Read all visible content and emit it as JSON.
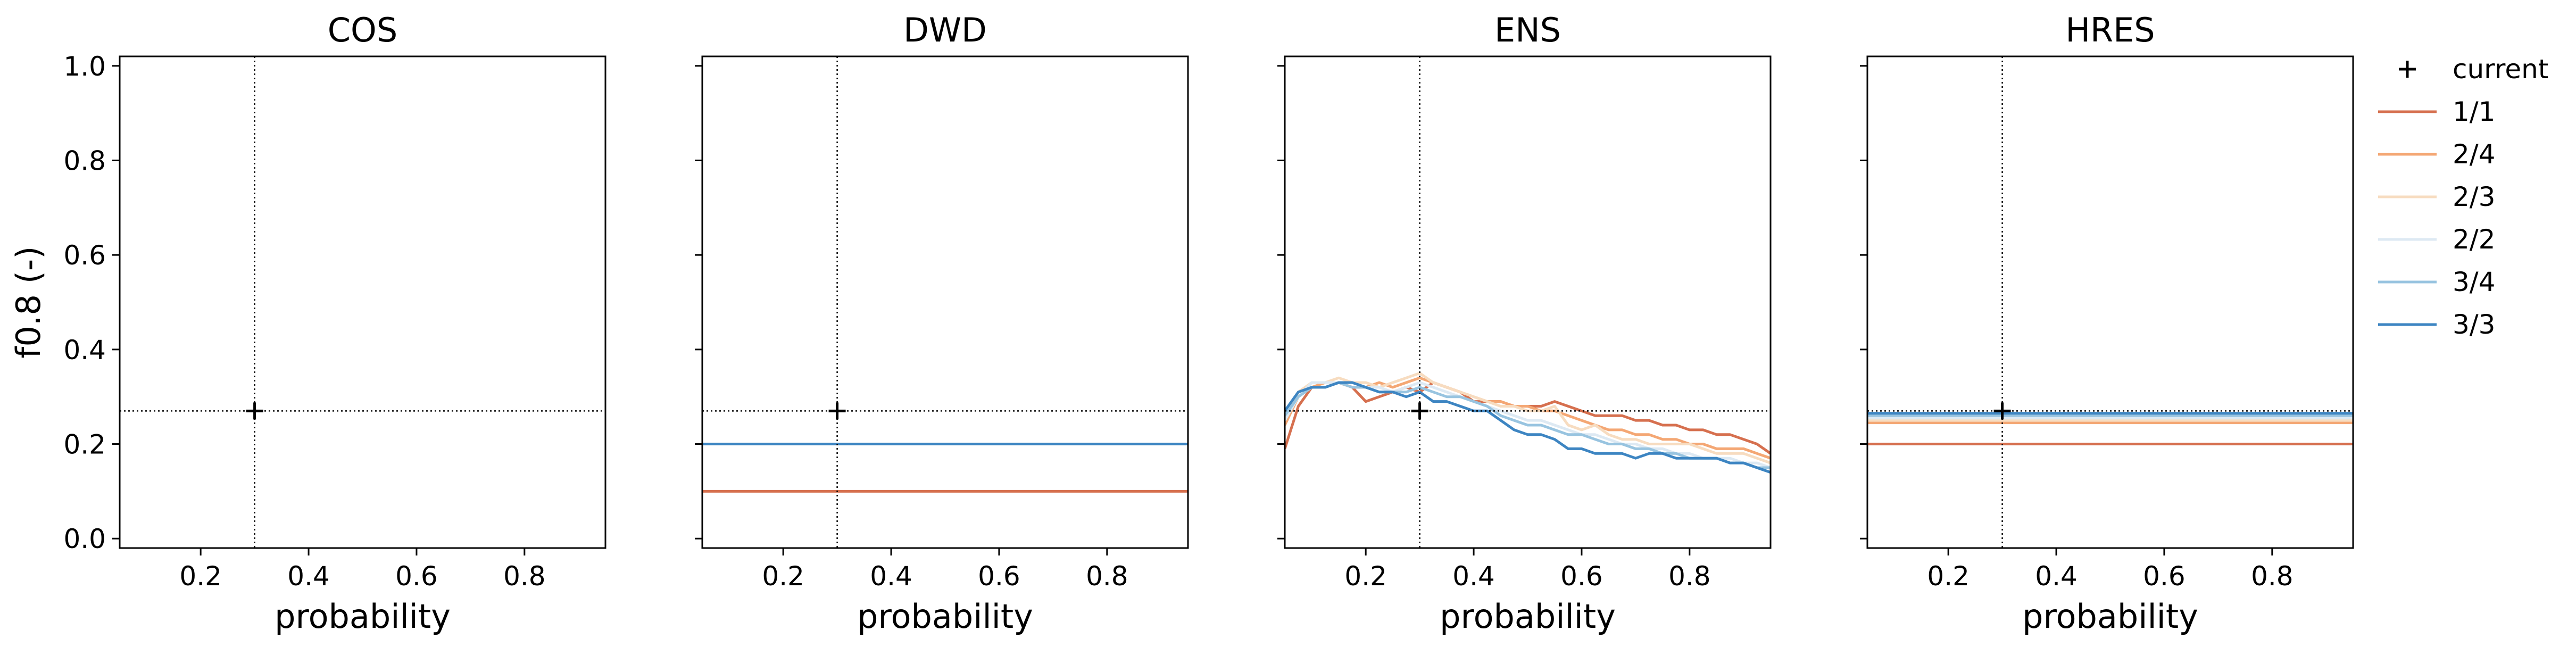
{
  "chart_data": {
    "type": "line",
    "ylabel": "f0.8 (-)",
    "xlabel": "probability",
    "xlim": [
      0.05,
      0.95
    ],
    "ylim": [
      -0.02,
      1.02
    ],
    "xticks": [
      0.2,
      0.4,
      0.6,
      0.8
    ],
    "xtick_labels": [
      "0.2",
      "0.4",
      "0.6",
      "0.8"
    ],
    "yticks": [
      0.0,
      0.2,
      0.4,
      0.6,
      0.8,
      1.0
    ],
    "ytick_labels": [
      "0.0",
      "0.2",
      "0.4",
      "0.6",
      "0.8",
      "1.0"
    ],
    "grid": false,
    "legend_position": "outside-right",
    "reference": {
      "label": "current",
      "x": 0.3,
      "y": 0.27
    },
    "series_colors": {
      "1/1": "#d6704f",
      "2/4": "#f4a774",
      "2/3": "#f7dcc0",
      "2/2": "#dde9f3",
      "3/4": "#98c4e0",
      "3/3": "#3d85c2"
    },
    "legend": [
      "current",
      "1/1",
      "2/4",
      "2/3",
      "2/2",
      "3/4",
      "3/3"
    ],
    "panels": [
      {
        "title": "COS",
        "series": []
      },
      {
        "title": "DWD",
        "series": [
          {
            "name": "1/1",
            "x": [
              0.05,
              0.95
            ],
            "y": [
              0.1,
              0.1
            ]
          },
          {
            "name": "2/4",
            "x": [
              0.05,
              0.95
            ],
            "y": [
              0.2,
              0.2
            ]
          },
          {
            "name": "3/3",
            "x": [
              0.05,
              0.95
            ],
            "y": [
              0.2,
              0.2
            ]
          }
        ]
      },
      {
        "title": "ENS",
        "series": [
          {
            "name": "1/1",
            "x": [
              0.05,
              0.075,
              0.1,
              0.125,
              0.15,
              0.175,
              0.2,
              0.225,
              0.25,
              0.275,
              0.3,
              0.325,
              0.35,
              0.375,
              0.4,
              0.425,
              0.45,
              0.475,
              0.5,
              0.525,
              0.55,
              0.575,
              0.6,
              0.625,
              0.65,
              0.675,
              0.7,
              0.725,
              0.75,
              0.775,
              0.8,
              0.825,
              0.85,
              0.875,
              0.9,
              0.925,
              0.95
            ],
            "y": [
              0.19,
              0.28,
              0.32,
              0.32,
              0.33,
              0.32,
              0.29,
              0.3,
              0.31,
              0.32,
              0.31,
              0.33,
              0.32,
              0.31,
              0.29,
              0.29,
              0.29,
              0.28,
              0.28,
              0.28,
              0.29,
              0.28,
              0.27,
              0.26,
              0.26,
              0.26,
              0.25,
              0.25,
              0.24,
              0.24,
              0.23,
              0.23,
              0.22,
              0.22,
              0.21,
              0.2,
              0.18
            ]
          },
          {
            "name": "2/4",
            "x": [
              0.05,
              0.075,
              0.1,
              0.125,
              0.15,
              0.175,
              0.2,
              0.225,
              0.25,
              0.275,
              0.3,
              0.325,
              0.35,
              0.375,
              0.4,
              0.425,
              0.45,
              0.475,
              0.5,
              0.525,
              0.55,
              0.575,
              0.6,
              0.625,
              0.65,
              0.675,
              0.7,
              0.725,
              0.75,
              0.775,
              0.8,
              0.825,
              0.85,
              0.875,
              0.9,
              0.925,
              0.95
            ],
            "y": [
              0.24,
              0.3,
              0.32,
              0.33,
              0.33,
              0.32,
              0.32,
              0.33,
              0.32,
              0.33,
              0.34,
              0.33,
              0.32,
              0.31,
              0.3,
              0.29,
              0.29,
              0.28,
              0.28,
              0.27,
              0.27,
              0.26,
              0.25,
              0.24,
              0.23,
              0.23,
              0.22,
              0.22,
              0.21,
              0.21,
              0.2,
              0.2,
              0.19,
              0.19,
              0.19,
              0.18,
              0.17
            ]
          },
          {
            "name": "2/3",
            "x": [
              0.05,
              0.075,
              0.1,
              0.125,
              0.15,
              0.175,
              0.2,
              0.225,
              0.25,
              0.275,
              0.3,
              0.325,
              0.35,
              0.375,
              0.4,
              0.425,
              0.45,
              0.475,
              0.5,
              0.525,
              0.55,
              0.575,
              0.6,
              0.625,
              0.65,
              0.675,
              0.7,
              0.725,
              0.75,
              0.775,
              0.8,
              0.825,
              0.85,
              0.875,
              0.9,
              0.925,
              0.95
            ],
            "y": [
              0.25,
              0.31,
              0.33,
              0.33,
              0.34,
              0.33,
              0.33,
              0.32,
              0.33,
              0.34,
              0.35,
              0.33,
              0.32,
              0.31,
              0.3,
              0.29,
              0.28,
              0.28,
              0.27,
              0.27,
              0.28,
              0.24,
              0.23,
              0.24,
              0.22,
              0.21,
              0.21,
              0.2,
              0.2,
              0.2,
              0.2,
              0.19,
              0.18,
              0.18,
              0.18,
              0.17,
              0.16
            ]
          },
          {
            "name": "2/2",
            "x": [
              0.05,
              0.075,
              0.1,
              0.125,
              0.15,
              0.175,
              0.2,
              0.225,
              0.25,
              0.275,
              0.3,
              0.325,
              0.35,
              0.375,
              0.4,
              0.425,
              0.45,
              0.475,
              0.5,
              0.525,
              0.55,
              0.575,
              0.6,
              0.625,
              0.65,
              0.675,
              0.7,
              0.725,
              0.75,
              0.775,
              0.8,
              0.825,
              0.85,
              0.875,
              0.9,
              0.925,
              0.95
            ],
            "y": [
              0.25,
              0.3,
              0.33,
              0.33,
              0.33,
              0.33,
              0.32,
              0.32,
              0.31,
              0.32,
              0.33,
              0.32,
              0.31,
              0.3,
              0.29,
              0.28,
              0.27,
              0.26,
              0.25,
              0.25,
              0.24,
              0.23,
              0.22,
              0.22,
              0.21,
              0.2,
              0.2,
              0.19,
              0.19,
              0.18,
              0.18,
              0.17,
              0.17,
              0.17,
              0.16,
              0.16,
              0.15
            ]
          },
          {
            "name": "3/4",
            "x": [
              0.05,
              0.075,
              0.1,
              0.125,
              0.15,
              0.175,
              0.2,
              0.225,
              0.25,
              0.275,
              0.3,
              0.325,
              0.35,
              0.375,
              0.4,
              0.425,
              0.45,
              0.475,
              0.5,
              0.525,
              0.55,
              0.575,
              0.6,
              0.625,
              0.65,
              0.675,
              0.7,
              0.725,
              0.75,
              0.775,
              0.8,
              0.825,
              0.85,
              0.875,
              0.9,
              0.925,
              0.95
            ],
            "y": [
              0.26,
              0.3,
              0.32,
              0.32,
              0.33,
              0.32,
              0.32,
              0.31,
              0.31,
              0.31,
              0.32,
              0.31,
              0.3,
              0.3,
              0.29,
              0.28,
              0.26,
              0.25,
              0.24,
              0.24,
              0.23,
              0.22,
              0.22,
              0.21,
              0.2,
              0.2,
              0.19,
              0.19,
              0.18,
              0.18,
              0.17,
              0.17,
              0.17,
              0.16,
              0.16,
              0.15,
              0.15
            ]
          },
          {
            "name": "3/3",
            "x": [
              0.05,
              0.075,
              0.1,
              0.125,
              0.15,
              0.175,
              0.2,
              0.225,
              0.25,
              0.275,
              0.3,
              0.325,
              0.35,
              0.375,
              0.4,
              0.425,
              0.45,
              0.475,
              0.5,
              0.525,
              0.55,
              0.575,
              0.6,
              0.625,
              0.65,
              0.675,
              0.7,
              0.725,
              0.75,
              0.775,
              0.8,
              0.825,
              0.85,
              0.875,
              0.9,
              0.925,
              0.95
            ],
            "y": [
              0.27,
              0.31,
              0.32,
              0.32,
              0.33,
              0.33,
              0.32,
              0.31,
              0.31,
              0.3,
              0.31,
              0.29,
              0.29,
              0.28,
              0.27,
              0.27,
              0.25,
              0.23,
              0.22,
              0.22,
              0.21,
              0.19,
              0.19,
              0.18,
              0.18,
              0.18,
              0.17,
              0.18,
              0.18,
              0.17,
              0.17,
              0.17,
              0.17,
              0.16,
              0.16,
              0.15,
              0.14
            ]
          }
        ]
      },
      {
        "title": "HRES",
        "series": [
          {
            "name": "1/1",
            "x": [
              0.05,
              0.95
            ],
            "y": [
              0.2,
              0.2
            ]
          },
          {
            "name": "2/4",
            "x": [
              0.05,
              0.95
            ],
            "y": [
              0.245,
              0.245
            ]
          },
          {
            "name": "2/3",
            "x": [
              0.05,
              0.95
            ],
            "y": [
              0.25,
              0.25
            ]
          },
          {
            "name": "2/2",
            "x": [
              0.05,
              0.95
            ],
            "y": [
              0.255,
              0.255
            ]
          },
          {
            "name": "3/4",
            "x": [
              0.05,
              0.95
            ],
            "y": [
              0.26,
              0.26
            ]
          },
          {
            "name": "3/3",
            "x": [
              0.05,
              0.95
            ],
            "y": [
              0.265,
              0.265
            ]
          }
        ]
      }
    ]
  }
}
